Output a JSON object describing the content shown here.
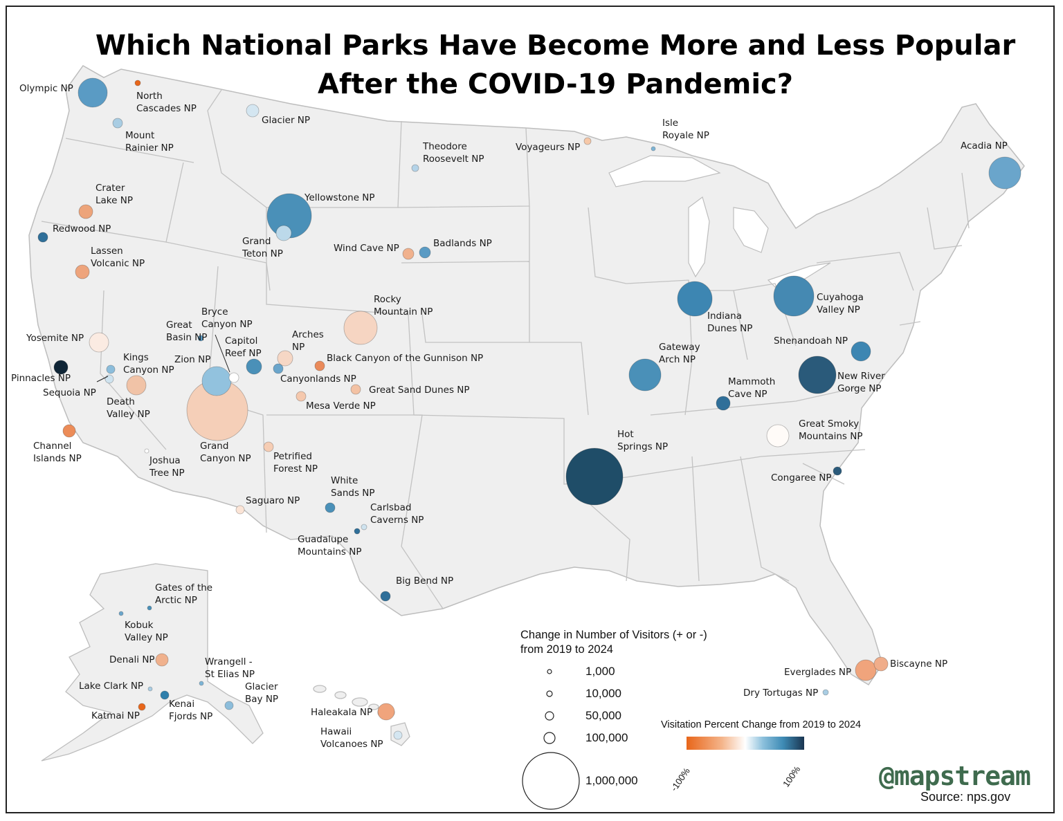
{
  "title": {
    "line1": "Which National Parks Have Become More and Less Popular",
    "line2": "After the COVID-19 Pandemic?"
  },
  "legend": {
    "size_title": "Change in Number of Visitors (+ or -) from 2019 to 2024",
    "size_values": [
      "1,000",
      "10,000",
      "50,000",
      "100,000",
      "1,000,000"
    ],
    "color_title": "Visitation Percent Change from 2019 to 2024",
    "color_min": "-100%",
    "color_max": "100%"
  },
  "colors": {
    "map_fill": "#efefef",
    "map_border": "#bdbdbd",
    "orange_strong": "#e8661a",
    "orange_light": "#f4b48a",
    "blue_light": "#8cc0dc",
    "blue_mid": "#3e8bb5",
    "blue_dark": "#1a3550"
  },
  "branding": {
    "handle": "@mapstream",
    "source": "Source: nps.gov"
  },
  "parks": [
    {
      "id": "olympic",
      "lines": [
        "Olympic NP"
      ]
    },
    {
      "id": "north-cascades",
      "lines": [
        "North",
        "Cascades NP"
      ]
    },
    {
      "id": "mount-rainier",
      "lines": [
        "Mount",
        "Rainier NP"
      ]
    },
    {
      "id": "glacier",
      "lines": [
        "Glacier NP"
      ]
    },
    {
      "id": "crater-lake",
      "lines": [
        "Crater",
        "Lake NP"
      ]
    },
    {
      "id": "redwood",
      "lines": [
        "Redwood NP"
      ]
    },
    {
      "id": "lassen",
      "lines": [
        "Lassen",
        "Volcanic NP"
      ]
    },
    {
      "id": "yellowstone",
      "lines": [
        "Yellowstone NP"
      ]
    },
    {
      "id": "grand-teton",
      "lines": [
        "Grand",
        "Teton NP"
      ]
    },
    {
      "id": "theodore-roosevelt",
      "lines": [
        "Theodore",
        "Roosevelt NP"
      ]
    },
    {
      "id": "voyageurs",
      "lines": [
        "Voyageurs NP"
      ]
    },
    {
      "id": "isle-royale",
      "lines": [
        "Isle",
        "Royale NP"
      ]
    },
    {
      "id": "acadia",
      "lines": [
        "Acadia NP"
      ]
    },
    {
      "id": "wind-cave",
      "lines": [
        "Wind Cave NP"
      ]
    },
    {
      "id": "badlands",
      "lines": [
        "Badlands NP"
      ]
    },
    {
      "id": "rocky-mountain",
      "lines": [
        "Rocky",
        "Mountain NP"
      ]
    },
    {
      "id": "yosemite",
      "lines": [
        "Yosemite NP"
      ]
    },
    {
      "id": "great-basin",
      "lines": [
        "Great",
        "Basin NP"
      ]
    },
    {
      "id": "bryce-canyon",
      "lines": [
        "Bryce",
        "Canyon NP"
      ]
    },
    {
      "id": "capitol-reef",
      "lines": [
        "Capitol",
        "Reef NP"
      ]
    },
    {
      "id": "arches",
      "lines": [
        "Arches",
        "NP"
      ]
    },
    {
      "id": "black-canyon",
      "lines": [
        "Black Canyon of the Gunnison NP"
      ]
    },
    {
      "id": "zion",
      "lines": [
        "Zion NP"
      ]
    },
    {
      "id": "kings-canyon",
      "lines": [
        "Kings",
        "Canyon NP"
      ]
    },
    {
      "id": "pinnacles",
      "lines": [
        "Pinnacles NP"
      ]
    },
    {
      "id": "sequoia",
      "lines": [
        "Sequoia NP"
      ]
    },
    {
      "id": "canyonlands",
      "lines": [
        "Canyonlands NP"
      ]
    },
    {
      "id": "great-sand-dunes",
      "lines": [
        "Great Sand Dunes NP"
      ]
    },
    {
      "id": "death-valley",
      "lines": [
        "Death",
        "Valley NP"
      ]
    },
    {
      "id": "mesa-verde",
      "lines": [
        "Mesa Verde NP"
      ]
    },
    {
      "id": "grand-canyon",
      "lines": [
        "Grand",
        "Canyon NP"
      ]
    },
    {
      "id": "channel-islands",
      "lines": [
        "Channel",
        "Islands NP"
      ]
    },
    {
      "id": "joshua-tree",
      "lines": [
        "Joshua",
        "Tree NP"
      ]
    },
    {
      "id": "petrified-forest",
      "lines": [
        "Petrified",
        "Forest NP"
      ]
    },
    {
      "id": "saguaro",
      "lines": [
        "Saguaro NP"
      ]
    },
    {
      "id": "white-sands",
      "lines": [
        "White",
        "Sands NP"
      ]
    },
    {
      "id": "carlsbad",
      "lines": [
        "Carlsbad",
        "Caverns NP"
      ]
    },
    {
      "id": "guadalupe",
      "lines": [
        "Guadalupe",
        "Mountains NP"
      ]
    },
    {
      "id": "big-bend",
      "lines": [
        "Big Bend NP"
      ]
    },
    {
      "id": "indiana-dunes",
      "lines": [
        "Indiana",
        "Dunes NP"
      ]
    },
    {
      "id": "cuyahoga",
      "lines": [
        "Cuyahoga",
        "Valley NP"
      ]
    },
    {
      "id": "gateway-arch",
      "lines": [
        "Gateway",
        "Arch NP"
      ]
    },
    {
      "id": "shenandoah",
      "lines": [
        "Shenandoah NP"
      ]
    },
    {
      "id": "new-river",
      "lines": [
        "New River",
        "Gorge NP"
      ]
    },
    {
      "id": "mammoth-cave",
      "lines": [
        "Mammoth",
        "Cave NP"
      ]
    },
    {
      "id": "great-smoky",
      "lines": [
        "Great Smoky",
        "Mountains NP"
      ]
    },
    {
      "id": "hot-springs",
      "lines": [
        "Hot",
        "Springs NP"
      ]
    },
    {
      "id": "congaree",
      "lines": [
        "Congaree NP"
      ]
    },
    {
      "id": "everglades",
      "lines": [
        "Everglades NP"
      ]
    },
    {
      "id": "biscayne",
      "lines": [
        "Biscayne NP"
      ]
    },
    {
      "id": "dry-tortugas",
      "lines": [
        "Dry Tortugas NP"
      ]
    },
    {
      "id": "gates-arctic",
      "lines": [
        "Gates of the",
        "Arctic NP"
      ]
    },
    {
      "id": "kobuk",
      "lines": [
        "Kobuk",
        "Valley NP"
      ]
    },
    {
      "id": "denali",
      "lines": [
        "Denali NP"
      ]
    },
    {
      "id": "wrangell",
      "lines": [
        "Wrangell -",
        "St Elias NP"
      ]
    },
    {
      "id": "lake-clark",
      "lines": [
        "Lake Clark NP"
      ]
    },
    {
      "id": "glacier-bay",
      "lines": [
        "Glacier",
        "Bay NP"
      ]
    },
    {
      "id": "katmai",
      "lines": [
        "Katmai NP"
      ]
    },
    {
      "id": "kenai",
      "lines": [
        "Kenai",
        "Fjords NP"
      ]
    },
    {
      "id": "haleakala",
      "lines": [
        "Haleakala NP"
      ]
    },
    {
      "id": "hawaii-volcanoes",
      "lines": [
        "Hawaii",
        "Volcanoes NP"
      ]
    }
  ]
}
